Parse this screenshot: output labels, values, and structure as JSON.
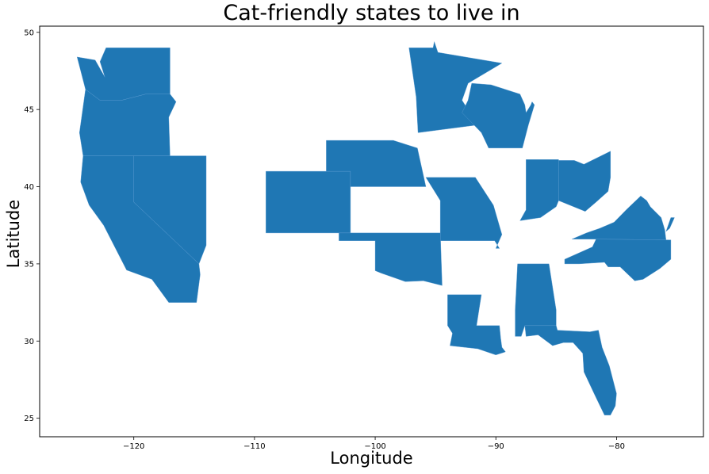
{
  "title": "Cat-friendly states to live in",
  "xlabel": "Longitude",
  "ylabel": "Latitude",
  "fill_color": "#1f77b4",
  "x_range": [
    -127.8,
    -72.8
  ],
  "y_range": [
    23.8,
    50.4
  ],
  "x_ticks": [
    -120,
    -110,
    -100,
    -90,
    -80
  ],
  "y_ticks": [
    25,
    30,
    35,
    40,
    45,
    50
  ],
  "x_tick_labels": [
    "−120",
    "−110",
    "−100",
    "−90",
    "−80"
  ],
  "y_tick_labels": [
    "25",
    "30",
    "35",
    "40",
    "45",
    "50"
  ],
  "states": [
    {
      "name": "Washington",
      "coords": [
        [
          -124.7,
          48.4
        ],
        [
          -123.2,
          48.2
        ],
        [
          -122.4,
          47.1
        ],
        [
          -122.8,
          48.1
        ],
        [
          -122.3,
          49.0
        ],
        [
          -117.0,
          49.0
        ],
        [
          -117.0,
          46.0
        ],
        [
          -119.0,
          46.0
        ],
        [
          -121.0,
          45.6
        ],
        [
          -122.8,
          45.6
        ],
        [
          -124.0,
          46.3
        ]
      ]
    },
    {
      "name": "Oregon",
      "coords": [
        [
          -124.0,
          46.3
        ],
        [
          -122.8,
          45.6
        ],
        [
          -121.0,
          45.6
        ],
        [
          -119.0,
          46.0
        ],
        [
          -117.0,
          46.0
        ],
        [
          -116.5,
          45.5
        ],
        [
          -117.1,
          44.5
        ],
        [
          -117.0,
          42.0
        ],
        [
          -124.2,
          42.0
        ],
        [
          -124.5,
          43.5
        ]
      ]
    },
    {
      "name": "California",
      "coords": [
        [
          -124.2,
          42.0
        ],
        [
          -120.0,
          42.0
        ],
        [
          -120.0,
          39.0
        ],
        [
          -114.6,
          35.0
        ],
        [
          -114.5,
          34.3
        ],
        [
          -114.8,
          32.5
        ],
        [
          -117.1,
          32.5
        ],
        [
          -118.5,
          34.0
        ],
        [
          -120.6,
          34.6
        ],
        [
          -122.5,
          37.5
        ],
        [
          -123.7,
          38.8
        ],
        [
          -124.4,
          40.3
        ]
      ]
    },
    {
      "name": "Nevada",
      "coords": [
        [
          -120.0,
          42.0
        ],
        [
          -114.0,
          42.0
        ],
        [
          -114.0,
          36.2
        ],
        [
          -114.6,
          35.0
        ],
        [
          -120.0,
          39.0
        ]
      ]
    },
    {
      "name": "Colorado",
      "coords": [
        [
          -109.05,
          41.0
        ],
        [
          -102.05,
          41.0
        ],
        [
          -102.05,
          37.0
        ],
        [
          -109.05,
          37.0
        ]
      ]
    },
    {
      "name": "Nebraska",
      "coords": [
        [
          -104.05,
          43.0
        ],
        [
          -98.5,
          43.0
        ],
        [
          -96.5,
          42.5
        ],
        [
          -95.8,
          40.0
        ],
        [
          -102.05,
          40.0
        ],
        [
          -102.05,
          41.0
        ],
        [
          -104.05,
          41.0
        ]
      ]
    },
    {
      "name": "Missouri",
      "coords": [
        [
          -95.8,
          40.6
        ],
        [
          -91.7,
          40.6
        ],
        [
          -90.2,
          38.8
        ],
        [
          -89.5,
          36.9
        ],
        [
          -90.0,
          36.0
        ],
        [
          -89.7,
          36.0
        ],
        [
          -90.1,
          36.5
        ],
        [
          -94.6,
          36.5
        ],
        [
          -94.6,
          39.1
        ]
      ]
    },
    {
      "name": "Oklahoma",
      "coords": [
        [
          -103.0,
          37.0
        ],
        [
          -94.6,
          37.0
        ],
        [
          -94.45,
          33.6
        ],
        [
          -96.0,
          33.9
        ],
        [
          -97.5,
          33.85
        ],
        [
          -99.5,
          34.4
        ],
        [
          -100.0,
          34.56
        ],
        [
          -100.0,
          36.5
        ],
        [
          -103.0,
          36.5
        ]
      ]
    },
    {
      "name": "Minnesota",
      "coords": [
        [
          -97.2,
          49.0
        ],
        [
          -95.2,
          49.0
        ],
        [
          -95.1,
          49.4
        ],
        [
          -94.8,
          48.7
        ],
        [
          -89.5,
          48.0
        ],
        [
          -92.3,
          46.7
        ],
        [
          -92.8,
          45.6
        ],
        [
          -91.5,
          44.0
        ],
        [
          -96.45,
          43.5
        ],
        [
          -96.6,
          45.8
        ]
      ]
    },
    {
      "name": "Wisconsin",
      "coords": [
        [
          -92.0,
          46.7
        ],
        [
          -90.4,
          46.6
        ],
        [
          -88.0,
          46.0
        ],
        [
          -87.6,
          45.3
        ],
        [
          -87.5,
          44.8
        ],
        [
          -87.1,
          45.3
        ],
        [
          -87.0,
          45.5
        ],
        [
          -86.8,
          45.3
        ],
        [
          -87.3,
          44.0
        ],
        [
          -87.8,
          42.5
        ],
        [
          -90.6,
          42.5
        ],
        [
          -91.2,
          43.5
        ],
        [
          -92.8,
          44.8
        ],
        [
          -92.3,
          45.6
        ]
      ]
    },
    {
      "name": "Indiana",
      "coords": [
        [
          -87.5,
          41.76
        ],
        [
          -84.8,
          41.76
        ],
        [
          -84.8,
          39.1
        ],
        [
          -85.0,
          38.7
        ],
        [
          -86.3,
          38.0
        ],
        [
          -88.0,
          37.8
        ],
        [
          -87.5,
          38.5
        ]
      ]
    },
    {
      "name": "Ohio",
      "coords": [
        [
          -84.8,
          41.7
        ],
        [
          -83.5,
          41.7
        ],
        [
          -82.7,
          41.45
        ],
        [
          -80.5,
          42.3
        ],
        [
          -80.5,
          40.6
        ],
        [
          -80.7,
          39.7
        ],
        [
          -81.7,
          39.0
        ],
        [
          -82.6,
          38.4
        ],
        [
          -84.8,
          39.1
        ]
      ]
    },
    {
      "name": "Virginia",
      "coords": [
        [
          -83.7,
          36.6
        ],
        [
          -81.7,
          36.6
        ],
        [
          -75.9,
          36.55
        ],
        [
          -76.0,
          37.2
        ],
        [
          -76.3,
          38.0
        ],
        [
          -77.2,
          38.7
        ],
        [
          -77.5,
          39.1
        ],
        [
          -78.0,
          39.4
        ],
        [
          -79.2,
          38.5
        ],
        [
          -80.2,
          37.7
        ],
        [
          -81.4,
          37.3
        ],
        [
          -82.5,
          37.0
        ]
      ]
    },
    {
      "name": "Virginia Eastern Shore",
      "coords": [
        [
          -75.9,
          37.1
        ],
        [
          -75.5,
          38.0
        ],
        [
          -75.2,
          38.0
        ],
        [
          -75.6,
          37.3
        ]
      ]
    },
    {
      "name": "North Carolina",
      "coords": [
        [
          -84.3,
          35.0
        ],
        [
          -83.1,
          35.0
        ],
        [
          -81.0,
          35.1
        ],
        [
          -80.7,
          34.8
        ],
        [
          -79.7,
          34.8
        ],
        [
          -78.5,
          33.9
        ],
        [
          -77.8,
          34.0
        ],
        [
          -76.4,
          34.7
        ],
        [
          -75.5,
          35.3
        ],
        [
          -75.5,
          36.55
        ],
        [
          -81.7,
          36.6
        ],
        [
          -82.0,
          36.1
        ],
        [
          -84.3,
          35.3
        ]
      ]
    },
    {
      "name": "Louisiana",
      "coords": [
        [
          -94.0,
          33.0
        ],
        [
          -91.2,
          33.0
        ],
        [
          -91.6,
          31.0
        ],
        [
          -89.7,
          31.0
        ],
        [
          -89.6,
          30.2
        ],
        [
          -89.5,
          29.6
        ],
        [
          -89.2,
          29.3
        ],
        [
          -90.0,
          29.1
        ],
        [
          -91.5,
          29.5
        ],
        [
          -93.8,
          29.7
        ],
        [
          -93.6,
          30.5
        ],
        [
          -94.0,
          31.0
        ]
      ]
    },
    {
      "name": "Alabama",
      "coords": [
        [
          -88.2,
          35.0
        ],
        [
          -85.6,
          35.0
        ],
        [
          -85.0,
          32.0
        ],
        [
          -85.0,
          31.0
        ],
        [
          -87.6,
          31.0
        ],
        [
          -87.9,
          30.3
        ],
        [
          -88.4,
          30.3
        ],
        [
          -88.4,
          32.0
        ]
      ]
    },
    {
      "name": "Florida",
      "coords": [
        [
          -87.6,
          31.0
        ],
        [
          -85.0,
          31.0
        ],
        [
          -84.9,
          30.7
        ],
        [
          -82.2,
          30.6
        ],
        [
          -81.5,
          30.7
        ],
        [
          -81.2,
          29.6
        ],
        [
          -80.6,
          28.4
        ],
        [
          -80.0,
          26.6
        ],
        [
          -80.1,
          25.8
        ],
        [
          -80.5,
          25.2
        ],
        [
          -81.0,
          25.2
        ],
        [
          -81.8,
          26.5
        ],
        [
          -82.7,
          28.0
        ],
        [
          -82.8,
          29.2
        ],
        [
          -83.6,
          29.9
        ],
        [
          -84.4,
          29.9
        ],
        [
          -85.3,
          29.7
        ],
        [
          -86.5,
          30.4
        ],
        [
          -87.5,
          30.3
        ]
      ]
    }
  ]
}
